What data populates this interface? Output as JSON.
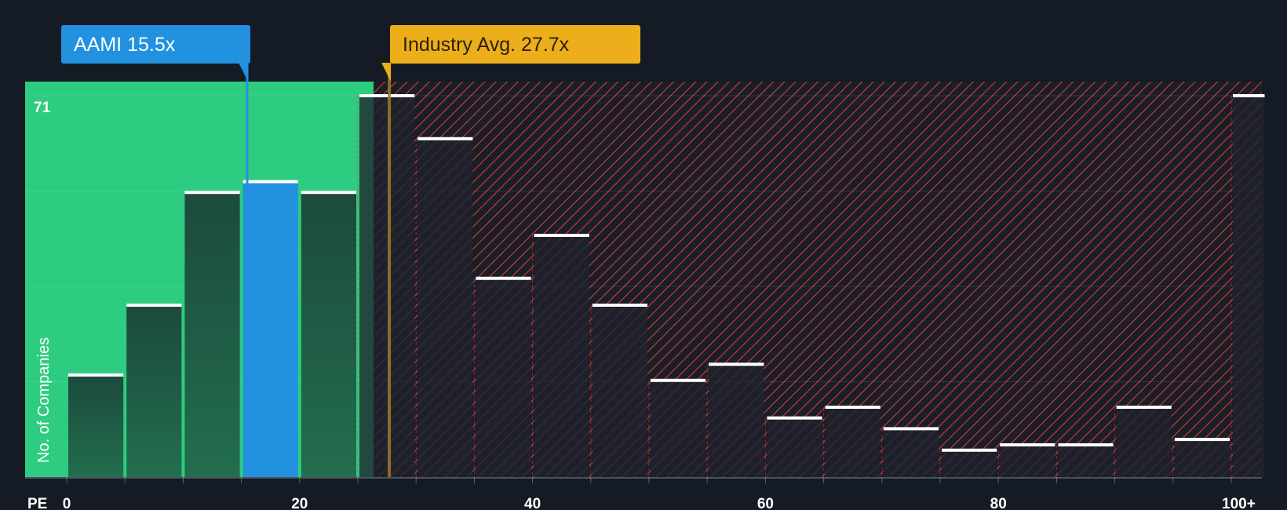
{
  "chart_data": {
    "type": "bar",
    "xlabel": "PE",
    "ylabel": "No. of Companies",
    "ymax_label": "71",
    "ylim": [
      0,
      71
    ],
    "x_ticks": [
      {
        "value": 0,
        "label": "0"
      },
      {
        "value": 20,
        "label": "20"
      },
      {
        "value": 40,
        "label": "40"
      },
      {
        "value": 60,
        "label": "60"
      },
      {
        "value": 80,
        "label": "80"
      },
      {
        "value": 100,
        "label": "100+"
      }
    ],
    "bins": [
      {
        "start": 0,
        "end": 5,
        "value": 19
      },
      {
        "start": 5,
        "end": 10,
        "value": 32
      },
      {
        "start": 10,
        "end": 15,
        "value": 53
      },
      {
        "start": 15,
        "end": 20,
        "value": 55,
        "highlight": true
      },
      {
        "start": 20,
        "end": 25,
        "value": 53
      },
      {
        "start": 25,
        "end": 30,
        "value": 71
      },
      {
        "start": 30,
        "end": 35,
        "value": 63
      },
      {
        "start": 35,
        "end": 40,
        "value": 37
      },
      {
        "start": 40,
        "end": 45,
        "value": 45
      },
      {
        "start": 45,
        "end": 50,
        "value": 32
      },
      {
        "start": 50,
        "end": 55,
        "value": 18
      },
      {
        "start": 55,
        "end": 60,
        "value": 21
      },
      {
        "start": 60,
        "end": 65,
        "value": 11
      },
      {
        "start": 65,
        "end": 70,
        "value": 13
      },
      {
        "start": 70,
        "end": 75,
        "value": 9
      },
      {
        "start": 75,
        "end": 80,
        "value": 5
      },
      {
        "start": 80,
        "end": 85,
        "value": 6
      },
      {
        "start": 85,
        "end": 90,
        "value": 6
      },
      {
        "start": 90,
        "end": 95,
        "value": 13
      },
      {
        "start": 95,
        "end": 100,
        "value": 7
      },
      {
        "start": 100,
        "end": 103,
        "value": 71
      }
    ],
    "company": {
      "label": "AAMI 15.5x",
      "value": 15.5
    },
    "industry": {
      "label": "Industry Avg. 27.7x",
      "value": 27.7
    },
    "colors": {
      "background": "#151b24",
      "undervalued_zone": "#2ecc80",
      "bar_in_zone": "#1e5a42",
      "bar_out_zone": "#1f222d",
      "highlight_bar": "#2191e0",
      "overvalued_hatch": "#d63b3b",
      "company_callout": "#2191e0",
      "industry_callout": "#ecae1b",
      "industry_line": "#9c7a2a",
      "bar_top": "#ffffff",
      "text": "#ffffff"
    }
  }
}
